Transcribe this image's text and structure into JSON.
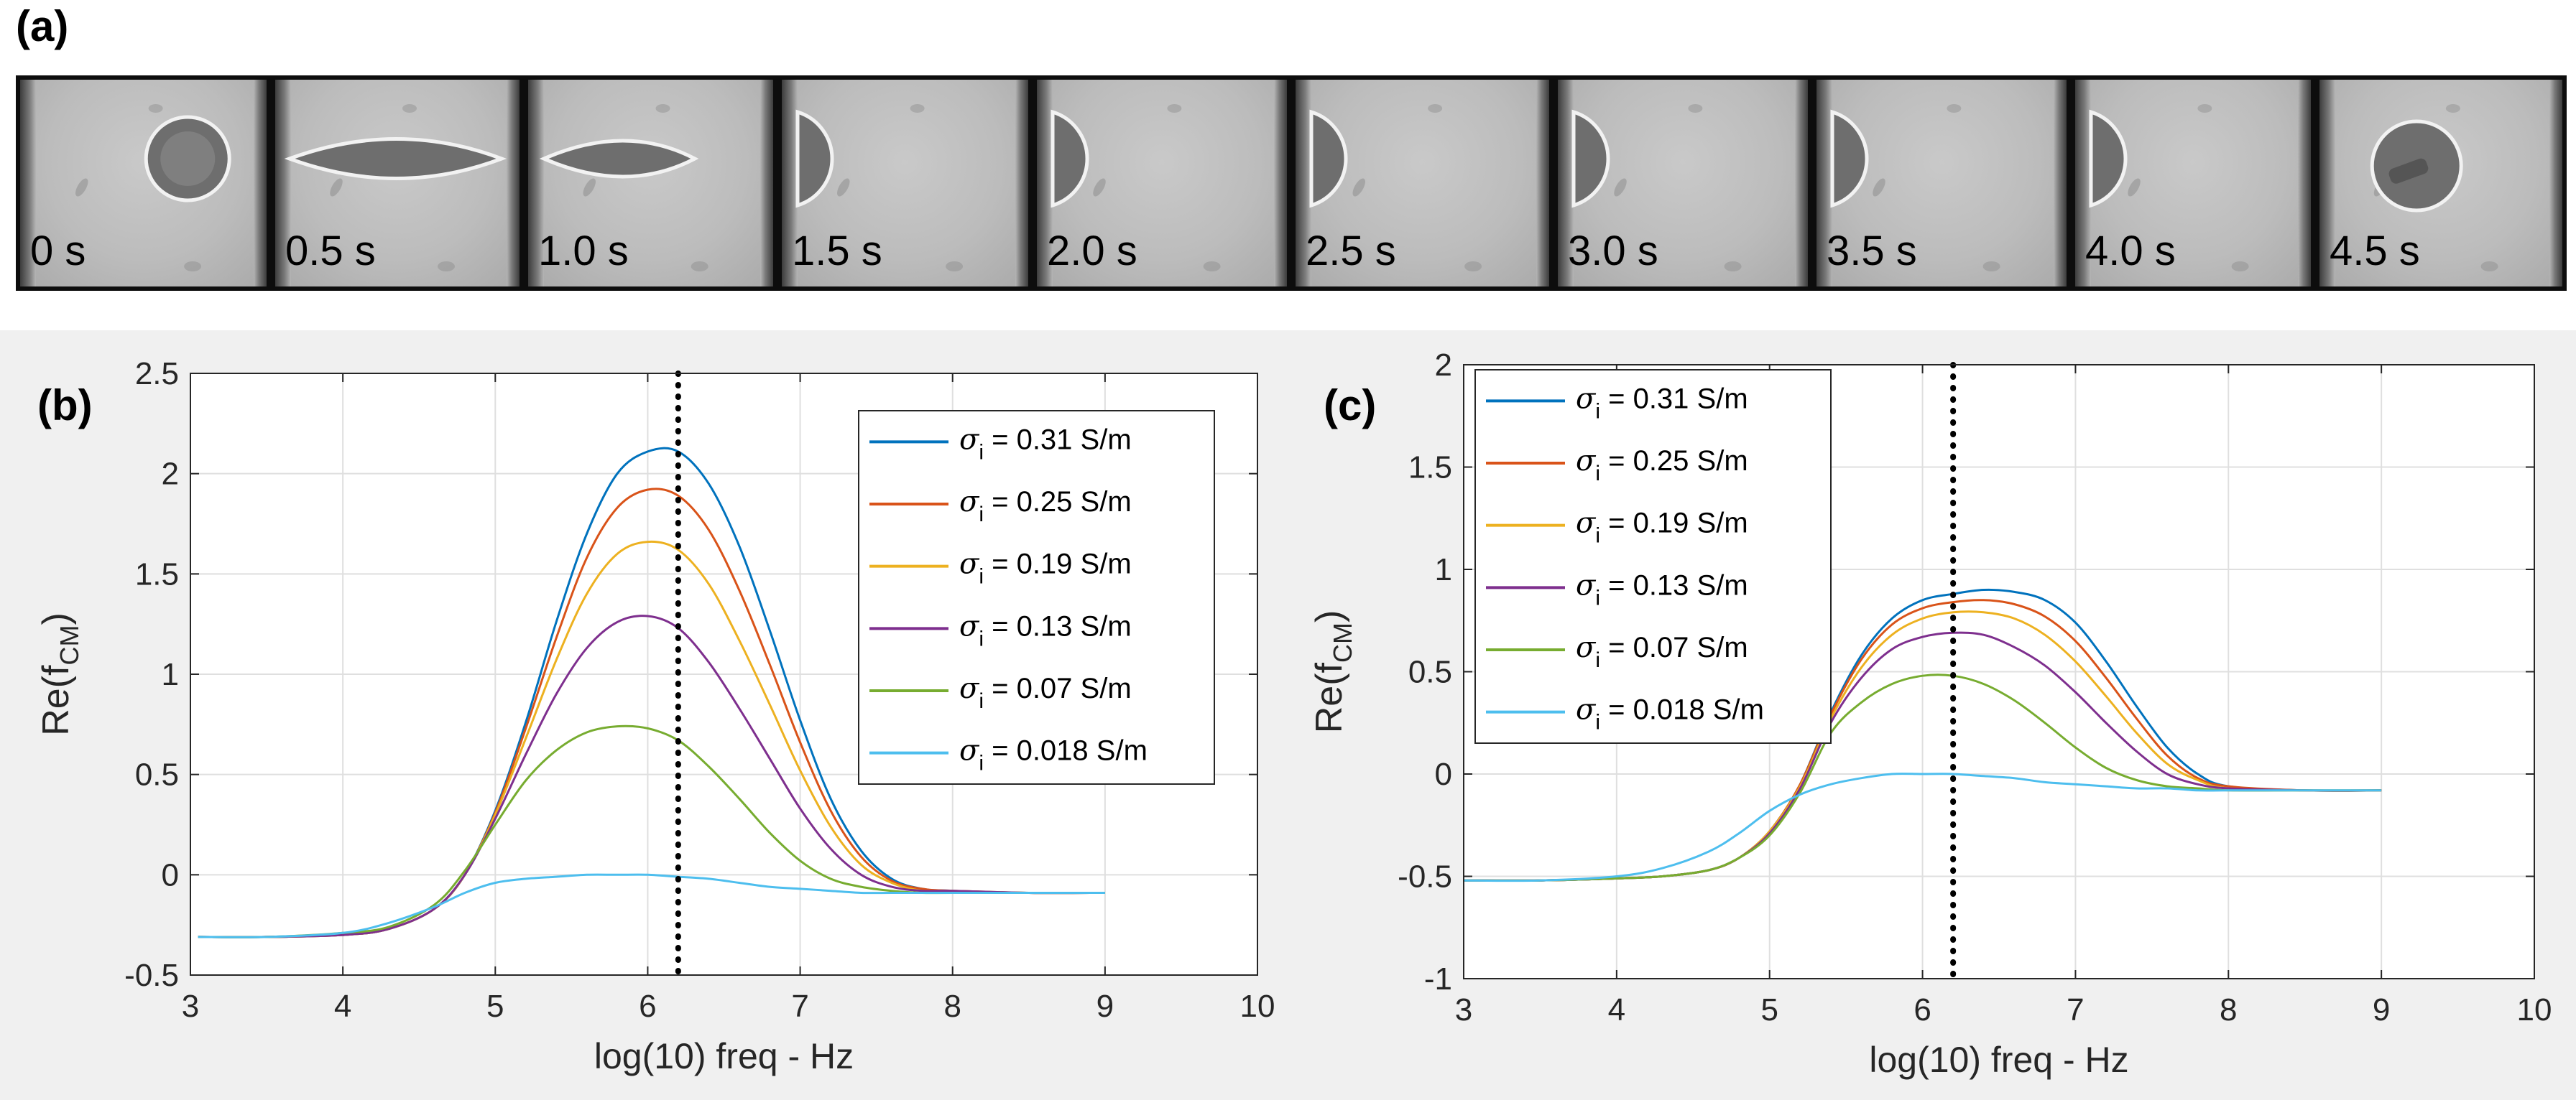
{
  "panel_labels": {
    "a": "(a)",
    "b": "(b)",
    "c": "(c)"
  },
  "frames": [
    {
      "label": "0 s",
      "state": "round"
    },
    {
      "label": "0.5 s",
      "state": "stretched"
    },
    {
      "label": "1.0 s",
      "state": "elongated"
    },
    {
      "label": "1.5 s",
      "state": "edge"
    },
    {
      "label": "2.0 s",
      "state": "edge"
    },
    {
      "label": "2.5 s",
      "state": "edge"
    },
    {
      "label": "3.0 s",
      "state": "edge"
    },
    {
      "label": "3.5 s",
      "state": "edge"
    },
    {
      "label": "4.0 s",
      "state": "edge"
    },
    {
      "label": "4.5 s",
      "state": "round-inner"
    }
  ],
  "colors": {
    "s031": "#0072bd",
    "s025": "#d95319",
    "s019": "#edb120",
    "s013": "#7e2f8e",
    "s007": "#77ac30",
    "s0018": "#4dbeee"
  },
  "chart_data": [
    {
      "id": "b",
      "type": "line",
      "xlabel": "log(10) freq - Hz",
      "ylabel_main": "Re(f",
      "ylabel_sub": "CM",
      "ylabel_close": ")",
      "xlim": [
        3,
        10
      ],
      "ylim": [
        -0.5,
        2.5
      ],
      "xticks": [
        3,
        4,
        5,
        6,
        7,
        8,
        9,
        10
      ],
      "xtick_labels": [
        "3",
        "4",
        "5",
        "6",
        "7",
        "8",
        "9",
        "10"
      ],
      "yticks": [
        -0.5,
        0,
        0.5,
        1,
        1.5,
        2,
        2.5
      ],
      "ytick_labels": [
        "-0.5",
        "0",
        "0.5",
        "1",
        "1.5",
        "2",
        "2.5"
      ],
      "grid": true,
      "vline_x": 6.2,
      "legend_position": "top-right",
      "x": [
        3.05,
        3.5,
        4.0,
        4.3,
        4.6,
        4.8,
        5.0,
        5.2,
        5.4,
        5.6,
        5.8,
        6.0,
        6.2,
        6.4,
        6.6,
        6.8,
        7.0,
        7.2,
        7.4,
        7.6,
        7.8,
        8.0,
        8.5,
        9.0
      ],
      "series": [
        {
          "name": "σ",
          "sub": "i",
          "value": " = 0.31 S/m",
          "color_key": "s031",
          "values": [
            -0.31,
            -0.31,
            -0.3,
            -0.27,
            -0.17,
            0.0,
            0.32,
            0.76,
            1.26,
            1.7,
            2.0,
            2.11,
            2.11,
            1.95,
            1.64,
            1.22,
            0.77,
            0.38,
            0.12,
            -0.02,
            -0.07,
            -0.08,
            -0.09,
            -0.09
          ]
        },
        {
          "name": "σ",
          "sub": "i",
          "value": " = 0.25 S/m",
          "color_key": "s025",
          "values": [
            -0.31,
            -0.31,
            -0.3,
            -0.27,
            -0.17,
            0.0,
            0.31,
            0.73,
            1.18,
            1.58,
            1.83,
            1.92,
            1.89,
            1.72,
            1.42,
            1.05,
            0.66,
            0.32,
            0.09,
            -0.03,
            -0.07,
            -0.08,
            -0.09,
            -0.09
          ]
        },
        {
          "name": "σ",
          "sub": "i",
          "value": " = 0.19 S/m",
          "color_key": "s019",
          "values": [
            -0.31,
            -0.31,
            -0.3,
            -0.27,
            -0.17,
            0.0,
            0.3,
            0.68,
            1.07,
            1.4,
            1.6,
            1.66,
            1.62,
            1.45,
            1.17,
            0.85,
            0.52,
            0.24,
            0.05,
            -0.04,
            -0.08,
            -0.08,
            -0.09,
            -0.09
          ]
        },
        {
          "name": "σ",
          "sub": "i",
          "value": " = 0.13 S/m",
          "color_key": "s013",
          "values": [
            -0.31,
            -0.31,
            -0.3,
            -0.27,
            -0.17,
            0.0,
            0.28,
            0.6,
            0.9,
            1.13,
            1.26,
            1.29,
            1.23,
            1.06,
            0.83,
            0.58,
            0.33,
            0.13,
            0.0,
            -0.06,
            -0.08,
            -0.08,
            -0.09,
            -0.09
          ]
        },
        {
          "name": "σ",
          "sub": "i",
          "value": " = 0.07 S/m",
          "color_key": "s007",
          "values": [
            -0.31,
            -0.31,
            -0.29,
            -0.26,
            -0.15,
            0.02,
            0.25,
            0.47,
            0.62,
            0.71,
            0.74,
            0.73,
            0.67,
            0.54,
            0.38,
            0.21,
            0.07,
            -0.02,
            -0.06,
            -0.08,
            -0.09,
            -0.09,
            -0.09,
            -0.09
          ]
        },
        {
          "name": "σ",
          "sub": "i",
          "value": " = 0.018 S/m",
          "color_key": "s0018",
          "values": [
            -0.31,
            -0.31,
            -0.29,
            -0.24,
            -0.16,
            -0.09,
            -0.04,
            -0.02,
            -0.01,
            0.0,
            0.0,
            0.0,
            -0.01,
            -0.02,
            -0.04,
            -0.06,
            -0.07,
            -0.08,
            -0.09,
            -0.09,
            -0.09,
            -0.09,
            -0.09,
            -0.09
          ]
        }
      ]
    },
    {
      "id": "c",
      "type": "line",
      "xlabel": "log(10) freq - Hz",
      "ylabel_main": "Re(f",
      "ylabel_sub": "CM",
      "ylabel_close": ")",
      "xlim": [
        3,
        10
      ],
      "ylim": [
        -1,
        2
      ],
      "xticks": [
        3,
        4,
        5,
        6,
        7,
        8,
        9,
        10
      ],
      "xtick_labels": [
        "3",
        "4",
        "5",
        "6",
        "7",
        "8",
        "9",
        "10"
      ],
      "yticks": [
        -1,
        -0.5,
        0,
        0.5,
        1,
        1.5,
        2
      ],
      "ytick_labels": [
        "-1",
        "-0.5",
        "0",
        "0.5",
        "1",
        "1.5",
        "2"
      ],
      "grid": true,
      "vline_x": 6.2,
      "legend_position": "top-left",
      "x": [
        3.0,
        3.5,
        4.0,
        4.3,
        4.6,
        4.8,
        5.0,
        5.2,
        5.4,
        5.6,
        5.8,
        6.0,
        6.2,
        6.4,
        6.6,
        6.8,
        7.0,
        7.2,
        7.4,
        7.6,
        7.8,
        8.0,
        8.5,
        9.0
      ],
      "series": [
        {
          "name": "σ",
          "sub": "i",
          "value": " = 0.31 S/m",
          "color_key": "s031",
          "values": [
            -0.52,
            -0.52,
            -0.51,
            -0.5,
            -0.47,
            -0.41,
            -0.28,
            -0.05,
            0.3,
            0.58,
            0.76,
            0.85,
            0.88,
            0.9,
            0.89,
            0.85,
            0.74,
            0.55,
            0.33,
            0.13,
            0.0,
            -0.06,
            -0.08,
            -0.08
          ]
        },
        {
          "name": "σ",
          "sub": "i",
          "value": " = 0.25 S/m",
          "color_key": "s025",
          "values": [
            -0.52,
            -0.52,
            -0.51,
            -0.5,
            -0.47,
            -0.41,
            -0.28,
            -0.05,
            0.29,
            0.56,
            0.73,
            0.81,
            0.84,
            0.85,
            0.83,
            0.77,
            0.65,
            0.47,
            0.27,
            0.09,
            -0.02,
            -0.06,
            -0.08,
            -0.08
          ]
        },
        {
          "name": "σ",
          "sub": "i",
          "value": " = 0.19 S/m",
          "color_key": "s019",
          "values": [
            -0.52,
            -0.52,
            -0.51,
            -0.5,
            -0.47,
            -0.41,
            -0.28,
            -0.06,
            0.27,
            0.52,
            0.68,
            0.76,
            0.79,
            0.79,
            0.76,
            0.68,
            0.55,
            0.38,
            0.2,
            0.05,
            -0.03,
            -0.07,
            -0.08,
            -0.08
          ]
        },
        {
          "name": "σ",
          "sub": "i",
          "value": " = 0.13 S/m",
          "color_key": "s013",
          "values": [
            -0.52,
            -0.52,
            -0.51,
            -0.5,
            -0.47,
            -0.41,
            -0.29,
            -0.07,
            0.25,
            0.47,
            0.61,
            0.67,
            0.69,
            0.68,
            0.62,
            0.53,
            0.4,
            0.25,
            0.11,
            0.0,
            -0.05,
            -0.07,
            -0.08,
            -0.08
          ]
        },
        {
          "name": "σ",
          "sub": "i",
          "value": " = 0.07 S/m",
          "color_key": "s007",
          "values": [
            -0.52,
            -0.52,
            -0.51,
            -0.5,
            -0.47,
            -0.41,
            -0.3,
            -0.09,
            0.2,
            0.35,
            0.44,
            0.48,
            0.48,
            0.44,
            0.36,
            0.25,
            0.13,
            0.03,
            -0.03,
            -0.06,
            -0.07,
            -0.08,
            -0.08,
            -0.08
          ]
        },
        {
          "name": "σ",
          "sub": "i",
          "value": " = 0.018 S/m",
          "color_key": "s0018",
          "values": [
            -0.52,
            -0.52,
            -0.5,
            -0.46,
            -0.38,
            -0.29,
            -0.18,
            -0.1,
            -0.05,
            -0.02,
            0.0,
            0.0,
            0.0,
            -0.01,
            -0.02,
            -0.04,
            -0.05,
            -0.06,
            -0.07,
            -0.07,
            -0.08,
            -0.08,
            -0.08,
            -0.08
          ]
        }
      ]
    }
  ]
}
